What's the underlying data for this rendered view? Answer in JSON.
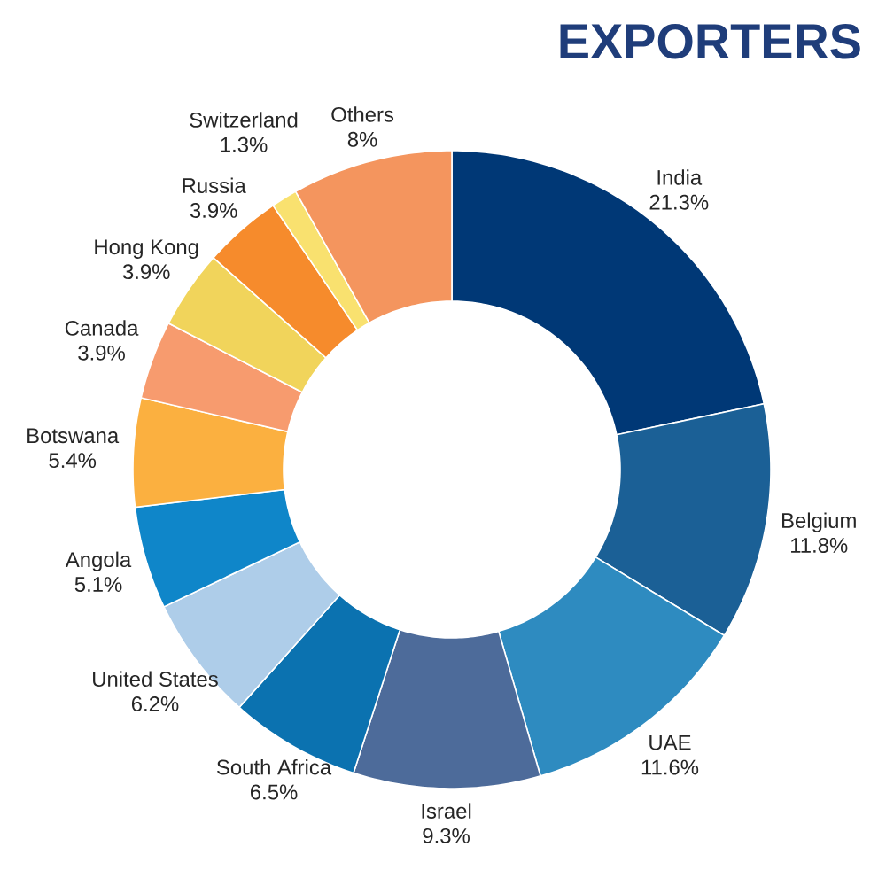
{
  "chart_data": {
    "type": "donut",
    "title": "EXPORTERS",
    "categories": [
      "India",
      "Belgium",
      "UAE",
      "Israel",
      "South Africa",
      "United States",
      "Angola",
      "Botswana",
      "Canada",
      "Hong Kong",
      "Russia",
      "Switzerland",
      "Others"
    ],
    "values": [
      21.3,
      11.8,
      11.6,
      9.3,
      6.5,
      6.2,
      5.1,
      5.4,
      3.9,
      3.9,
      3.9,
      1.3,
      8
    ],
    "value_labels": [
      "21.3%",
      "11.8%",
      "11.6%",
      "9.3%",
      "6.5%",
      "6.2%",
      "5.1%",
      "5.4%",
      "3.9%",
      "3.9%",
      "3.9%",
      "1.3%",
      "8%"
    ],
    "colors": [
      "#003876",
      "#1b6096",
      "#2e8bc0",
      "#4d6b9a",
      "#0b72b0",
      "#aecde9",
      "#0f86c9",
      "#fbb040",
      "#f79b6e",
      "#f1d45b",
      "#f68b2c",
      "#f9e16f",
      "#f4955e"
    ]
  }
}
